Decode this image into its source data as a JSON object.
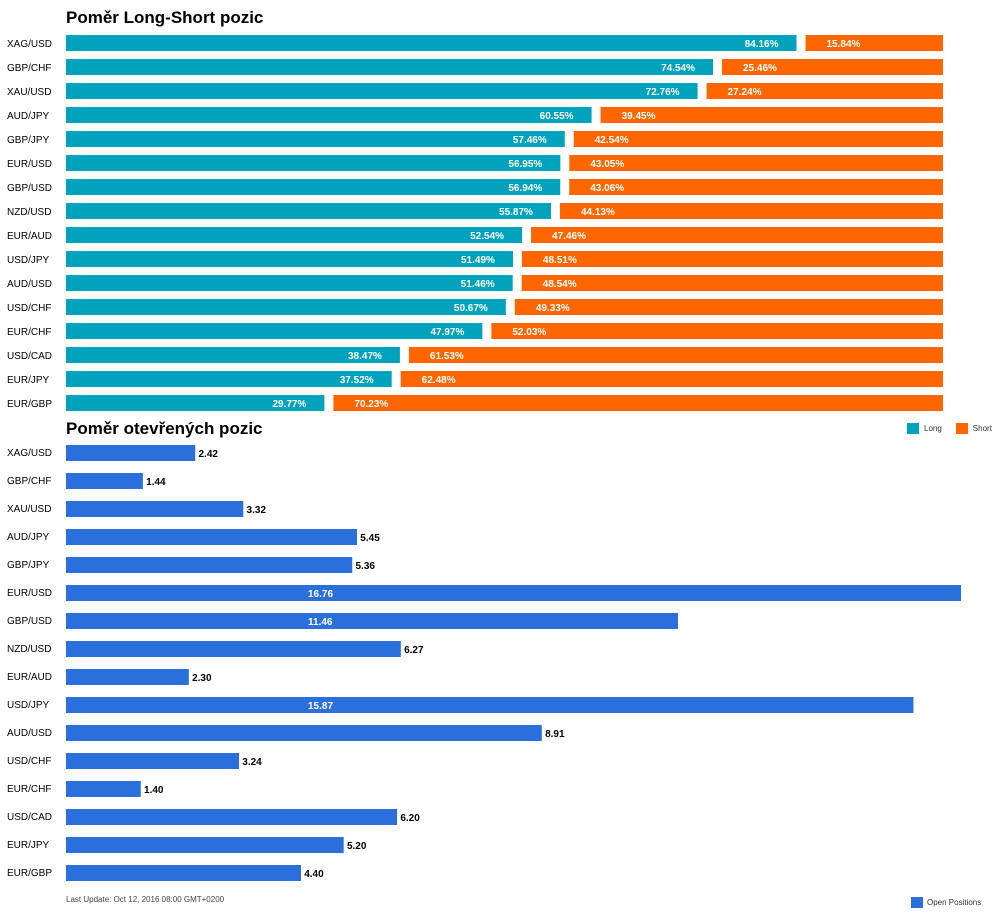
{
  "colors": {
    "long": "#00a3bb",
    "short": "#ff6600",
    "open": "#2a6fdb",
    "label_on_bar": "#ffffff",
    "label_off_bar": "#000000"
  },
  "chart_data": [
    {
      "type": "bar",
      "orientation": "horizontal",
      "stacked": true,
      "title": "Poměr Long-Short pozic",
      "categories": [
        "XAG/USD",
        "GBP/CHF",
        "XAU/USD",
        "AUD/JPY",
        "GBP/JPY",
        "EUR/USD",
        "GBP/USD",
        "NZD/USD",
        "EUR/AUD",
        "USD/JPY",
        "AUD/USD",
        "USD/CHF",
        "EUR/CHF",
        "USD/CAD",
        "EUR/JPY",
        "EUR/GBP"
      ],
      "series": [
        {
          "name": "Long",
          "values": [
            84.16,
            74.54,
            72.76,
            60.55,
            57.46,
            56.95,
            56.94,
            55.87,
            52.54,
            51.49,
            51.46,
            50.67,
            47.97,
            38.47,
            37.52,
            29.77
          ],
          "labels": [
            "84.16%",
            "74.54%",
            "72.76%",
            "60.55%",
            "57.46%",
            "56.95%",
            "56.94%",
            "55.87%",
            "52.54%",
            "51.49%",
            "51.46%",
            "50.67%",
            "47.97%",
            "38.47%",
            "37.52%",
            "29.77%"
          ]
        },
        {
          "name": "Short",
          "values": [
            15.84,
            25.46,
            27.24,
            39.45,
            42.54,
            43.05,
            43.06,
            44.13,
            47.46,
            48.51,
            48.54,
            49.33,
            52.03,
            61.53,
            62.48,
            70.23
          ],
          "labels": [
            "15.84%",
            "25.46%",
            "27.24%",
            "39.45%",
            "42.54%",
            "43.05%",
            "43.06%",
            "44.13%",
            "47.46%",
            "48.51%",
            "48.54%",
            "49.33%",
            "52.03%",
            "61.53%",
            "62.48%",
            "70.23%"
          ]
        }
      ],
      "xlim": [
        0,
        100
      ],
      "legend": "bottom-right"
    },
    {
      "type": "bar",
      "orientation": "horizontal",
      "title": "Poměr otevřených pozic",
      "categories": [
        "XAG/USD",
        "GBP/CHF",
        "XAU/USD",
        "AUD/JPY",
        "GBP/JPY",
        "EUR/USD",
        "GBP/USD",
        "NZD/USD",
        "EUR/AUD",
        "USD/JPY",
        "AUD/USD",
        "USD/CHF",
        "EUR/CHF",
        "USD/CAD",
        "EUR/JPY",
        "EUR/GBP"
      ],
      "series": [
        {
          "name": "Open Positions",
          "values": [
            2.42,
            1.44,
            3.32,
            5.45,
            5.36,
            16.76,
            11.46,
            6.27,
            2.3,
            15.87,
            8.91,
            3.24,
            1.4,
            6.2,
            5.2,
            4.4
          ],
          "labels": [
            "2.42",
            "1.44",
            "3.32",
            "5.45",
            "5.36",
            "16.76",
            "11.46",
            "6.27",
            "2.30",
            "15.87",
            "8.91",
            "3.24",
            "1.40",
            "6.20",
            "5.20",
            "4.40"
          ]
        }
      ],
      "xlim": [
        0,
        16.76
      ],
      "legend": "bottom-right"
    }
  ],
  "legend_long": "Long",
  "legend_short": "Short",
  "legend_open": "Open Positions",
  "footer": "Last Update: Oct 12, 2016 08:00 GMT+0200"
}
